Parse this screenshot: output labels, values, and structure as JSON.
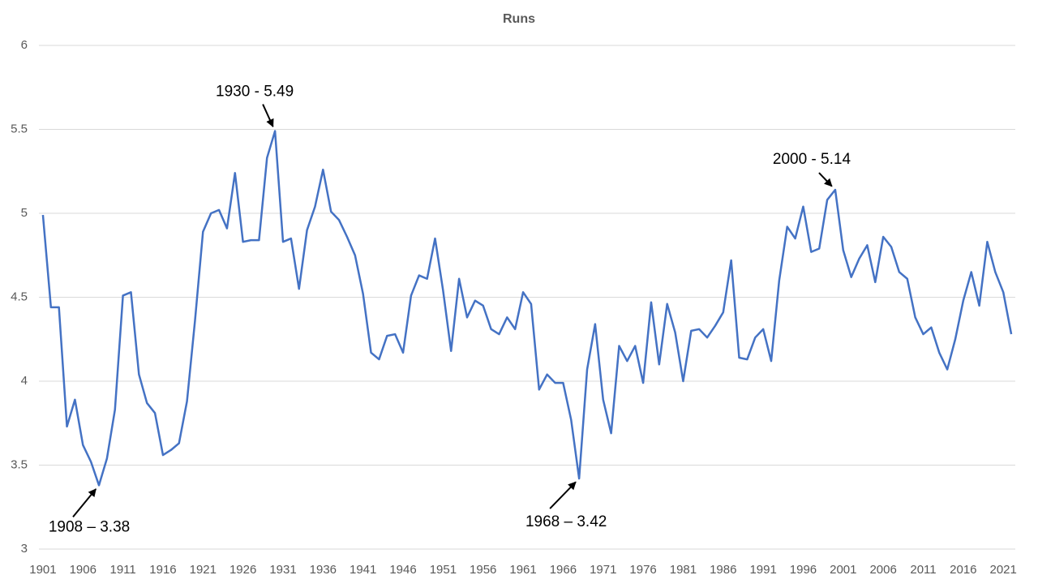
{
  "chart_data": {
    "type": "line",
    "title": "Runs",
    "x": [
      1901,
      1902,
      1903,
      1904,
      1905,
      1906,
      1907,
      1908,
      1909,
      1910,
      1911,
      1912,
      1913,
      1914,
      1915,
      1916,
      1917,
      1918,
      1919,
      1920,
      1921,
      1922,
      1923,
      1924,
      1925,
      1926,
      1927,
      1928,
      1929,
      1930,
      1931,
      1932,
      1933,
      1934,
      1935,
      1936,
      1937,
      1938,
      1939,
      1940,
      1941,
      1942,
      1943,
      1944,
      1945,
      1946,
      1947,
      1948,
      1949,
      1950,
      1951,
      1952,
      1953,
      1954,
      1955,
      1956,
      1957,
      1958,
      1959,
      1960,
      1961,
      1962,
      1963,
      1964,
      1965,
      1966,
      1967,
      1968,
      1969,
      1970,
      1971,
      1972,
      1973,
      1974,
      1975,
      1976,
      1977,
      1978,
      1979,
      1980,
      1981,
      1982,
      1983,
      1984,
      1985,
      1986,
      1987,
      1988,
      1989,
      1990,
      1991,
      1992,
      1993,
      1994,
      1995,
      1996,
      1997,
      1998,
      1999,
      2000,
      2001,
      2002,
      2003,
      2004,
      2005,
      2006,
      2007,
      2008,
      2009,
      2010,
      2011,
      2012,
      2013,
      2014,
      2015,
      2016,
      2017,
      2018,
      2019,
      2020,
      2021,
      2022
    ],
    "series": [
      {
        "name": "Runs",
        "color": "#4472c4",
        "values": [
          4.99,
          4.44,
          4.44,
          3.73,
          3.89,
          3.62,
          3.52,
          3.38,
          3.54,
          3.83,
          4.51,
          4.53,
          4.04,
          3.87,
          3.81,
          3.56,
          3.59,
          3.63,
          3.88,
          4.36,
          4.89,
          5.0,
          5.02,
          4.91,
          5.24,
          4.83,
          4.84,
          4.84,
          5.33,
          5.49,
          4.83,
          4.85,
          4.55,
          4.9,
          5.04,
          5.26,
          5.01,
          4.96,
          4.86,
          4.75,
          4.52,
          4.17,
          4.13,
          4.27,
          4.28,
          4.17,
          4.51,
          4.63,
          4.61,
          4.85,
          4.54,
          4.18,
          4.61,
          4.38,
          4.48,
          4.45,
          4.31,
          4.28,
          4.38,
          4.31,
          4.53,
          4.46,
          3.95,
          4.04,
          3.99,
          3.99,
          3.77,
          3.42,
          4.07,
          4.34,
          3.89,
          3.69,
          4.21,
          4.12,
          4.21,
          3.99,
          4.47,
          4.1,
          4.46,
          4.29,
          4.0,
          4.3,
          4.31,
          4.26,
          4.33,
          4.41,
          4.72,
          4.14,
          4.13,
          4.26,
          4.31,
          4.12,
          4.6,
          4.92,
          4.85,
          5.04,
          4.77,
          4.79,
          5.08,
          5.14,
          4.78,
          4.62,
          4.73,
          4.81,
          4.59,
          4.86,
          4.8,
          4.65,
          4.61,
          4.38,
          4.28,
          4.32,
          4.17,
          4.07,
          4.25,
          4.48,
          4.65,
          4.45,
          4.83,
          4.65,
          4.53,
          4.28
        ]
      }
    ],
    "xlim": [
      1900.5,
      2022.5
    ],
    "xticks": [
      1901,
      1906,
      1911,
      1916,
      1921,
      1926,
      1931,
      1936,
      1941,
      1946,
      1951,
      1956,
      1961,
      1966,
      1971,
      1976,
      1981,
      1986,
      1991,
      1996,
      2001,
      2006,
      2011,
      2016,
      2021
    ],
    "ylim": [
      3,
      6
    ],
    "yticks": [
      3,
      3.5,
      4,
      4.5,
      5,
      5.5,
      6
    ],
    "grid": true,
    "annotations": [
      {
        "text": "1930 - 5.49",
        "x": 1930,
        "y": 5.49
      },
      {
        "text": "1908 – 3.38",
        "x": 1908,
        "y": 3.38
      },
      {
        "text": "1968 – 3.42",
        "x": 1968,
        "y": 3.42
      },
      {
        "text": "2000 - 5.14",
        "x": 2000,
        "y": 5.14
      }
    ]
  }
}
